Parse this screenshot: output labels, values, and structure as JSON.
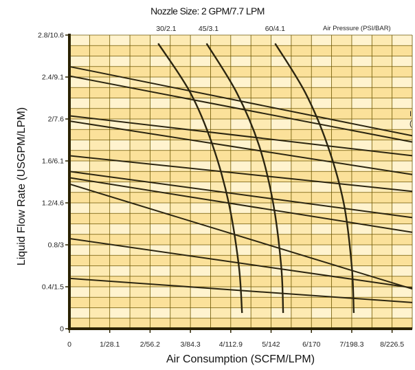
{
  "chart_data": {
    "type": "line",
    "title": "Nozzle Size: 2 GPM/7.7 LPM",
    "xlabel": "Air Consumption (SCFM/LPM)",
    "ylabel": "Liquid Flow Rate (USGPM/LPM)",
    "xlim": [
      0,
      8.5
    ],
    "ylim": [
      0,
      2.8
    ],
    "x_ticks": [
      {
        "value": 0,
        "label": "0"
      },
      {
        "value": 1,
        "label": "1/28.1"
      },
      {
        "value": 2,
        "label": "2/56.2"
      },
      {
        "value": 3,
        "label": "3/84.3"
      },
      {
        "value": 4,
        "label": "4/112.9"
      },
      {
        "value": 5,
        "label": "5/142"
      },
      {
        "value": 6,
        "label": "6/170"
      },
      {
        "value": 7,
        "label": "7/198.3"
      },
      {
        "value": 8,
        "label": "8/226.5"
      }
    ],
    "y_ticks": [
      {
        "value": 0,
        "label": "0"
      },
      {
        "value": 0.4,
        "label": "0.4/1.5"
      },
      {
        "value": 0.8,
        "label": "0.8/3"
      },
      {
        "value": 1.2,
        "label": "1.2/4.6"
      },
      {
        "value": 1.6,
        "label": "1.6/6.1"
      },
      {
        "value": 2.0,
        "label": "2/7.6"
      },
      {
        "value": 2.4,
        "label": "2.4/9.1"
      },
      {
        "value": 2.8,
        "label": "2.8/10.6"
      }
    ],
    "air_pressure_title": "Air Pressure (PSI/BAR)",
    "pressure_labels": [
      {
        "label": "30/2.1",
        "x": 2.4
      },
      {
        "label": "45/3.1",
        "x": 3.45
      },
      {
        "label": "60/4.1",
        "x": 5.1
      }
    ],
    "pressure_curves": [
      {
        "label": "30/2.1",
        "points": [
          [
            2.2,
            2.72
          ],
          [
            3.0,
            2.25
          ],
          [
            3.55,
            1.75
          ],
          [
            3.95,
            1.2
          ],
          [
            4.2,
            0.6
          ],
          [
            4.28,
            0.15
          ]
        ]
      },
      {
        "label": "45/3.1",
        "points": [
          [
            3.4,
            2.72
          ],
          [
            4.15,
            2.25
          ],
          [
            4.7,
            1.75
          ],
          [
            5.05,
            1.2
          ],
          [
            5.25,
            0.6
          ],
          [
            5.3,
            0.15
          ]
        ]
      },
      {
        "label": "60/4.1",
        "points": [
          [
            5.1,
            2.72
          ],
          [
            5.85,
            2.25
          ],
          [
            6.4,
            1.75
          ],
          [
            6.8,
            1.2
          ],
          [
            7.0,
            0.6
          ],
          [
            7.05,
            0.15
          ]
        ]
      }
    ],
    "flow_lines": [
      {
        "points": [
          [
            0,
            2.5
          ],
          [
            8.5,
            1.84
          ]
        ]
      },
      {
        "points": [
          [
            0,
            2.41
          ],
          [
            8.5,
            1.78
          ]
        ]
      },
      {
        "points": [
          [
            0,
            2.03
          ],
          [
            8.5,
            1.65
          ]
        ]
      },
      {
        "points": [
          [
            0,
            1.98
          ],
          [
            8.5,
            1.47
          ]
        ]
      },
      {
        "points": [
          [
            0,
            1.65
          ],
          [
            8.5,
            1.31
          ]
        ]
      },
      {
        "points": [
          [
            0,
            1.5
          ],
          [
            8.5,
            1.06
          ]
        ]
      },
      {
        "points": [
          [
            0,
            1.44
          ],
          [
            8.5,
            0.92
          ]
        ]
      },
      {
        "points": [
          [
            0,
            1.38
          ],
          [
            8.5,
            0.38
          ]
        ]
      },
      {
        "points": [
          [
            0,
            0.86
          ],
          [
            8.5,
            0.39
          ]
        ]
      },
      {
        "points": [
          [
            0,
            0.48
          ],
          [
            8.5,
            0.25
          ]
        ]
      }
    ],
    "grid": true,
    "legend": "none"
  },
  "colors": {
    "band": "#fbe19a",
    "grid_line": "#6b5500",
    "axis": "#2b2200",
    "curve": "#2b2510"
  }
}
